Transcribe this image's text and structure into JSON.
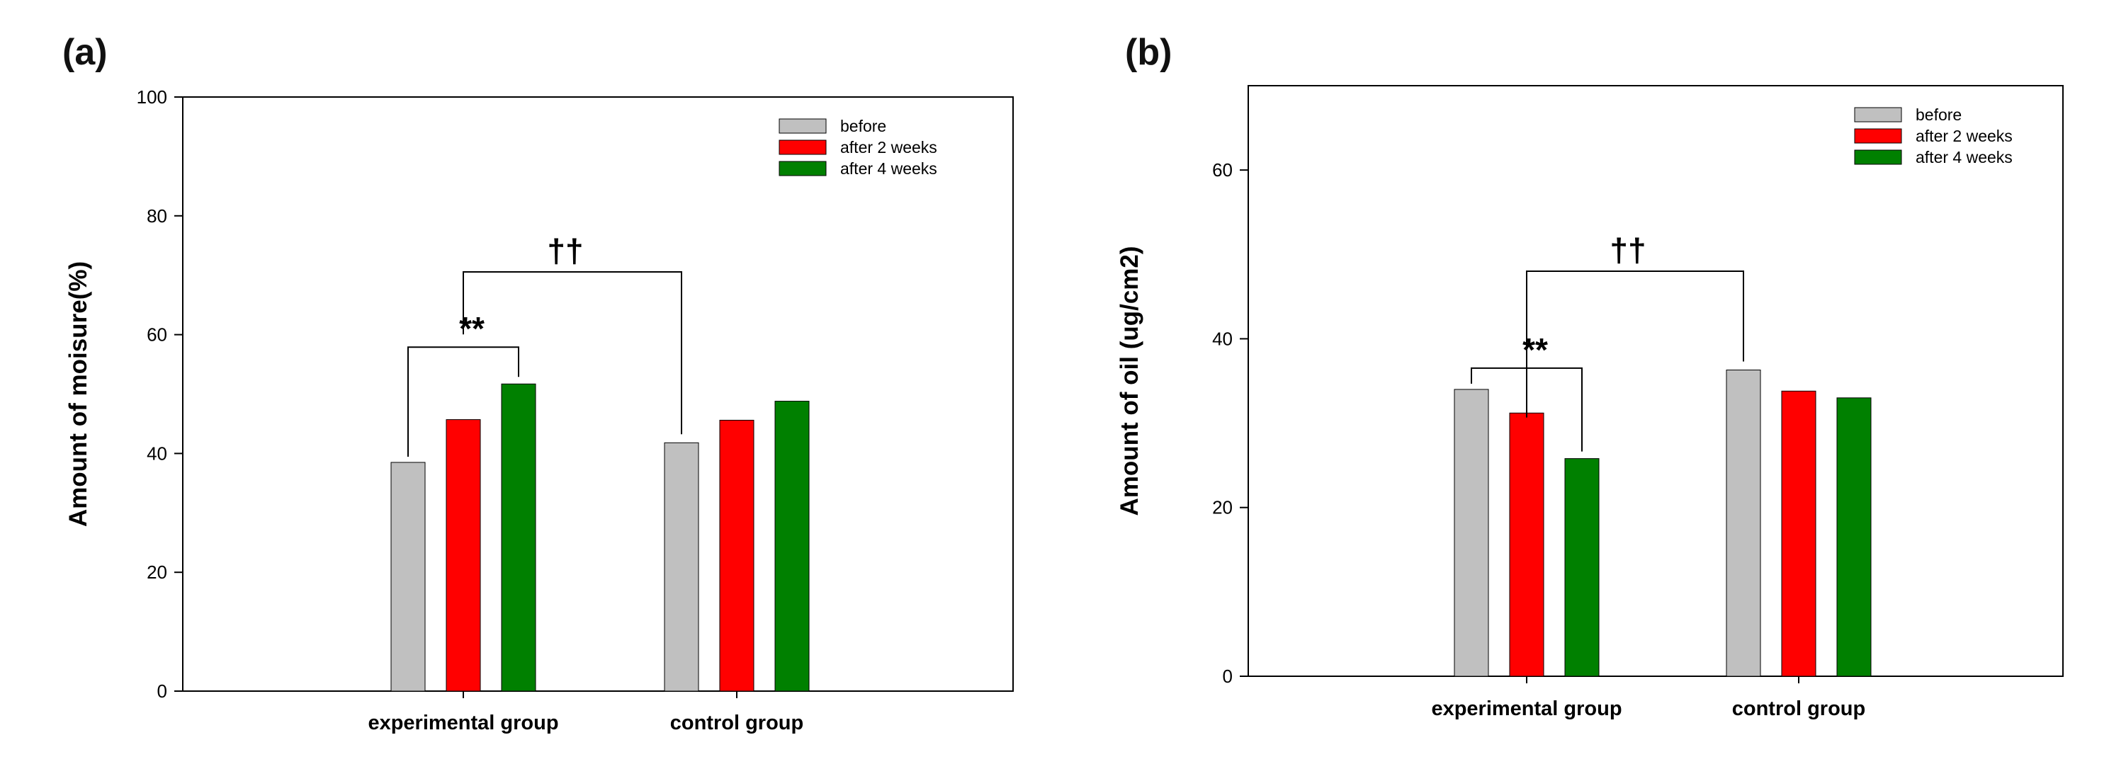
{
  "chart_data": [
    {
      "panel_label": "(a)",
      "type": "bar",
      "title": "",
      "xlabel": "",
      "ylabel": "Amount of moisure(%)",
      "ylim": [
        0,
        100
      ],
      "yticks": [
        0,
        20,
        40,
        60,
        80,
        100
      ],
      "yticks_text": [
        "0",
        "20",
        "40",
        "60",
        "80",
        "100"
      ],
      "categories": [
        "experimental group",
        "control group"
      ],
      "series": [
        {
          "name": "before",
          "color": "#c0c0c0",
          "values": [
            38.5,
            41.8
          ]
        },
        {
          "name": "after 2 weeks",
          "color": "#ff0000",
          "values": [
            45.7,
            45.6
          ]
        },
        {
          "name": "after 4 weeks",
          "color": "#008000",
          "values": [
            51.7,
            48.8
          ]
        }
      ],
      "legend_position": "top-right",
      "annotations": [
        {
          "text": "**",
          "type": "bracket",
          "from_series": 0,
          "to_series": 2,
          "category": 0
        },
        {
          "text": "††",
          "type": "bracket-between-groups",
          "from_category": 0,
          "to_category": 1
        }
      ]
    },
    {
      "panel_label": "(b)",
      "type": "bar",
      "title": "",
      "xlabel": "",
      "ylabel": "Amount of oil (ug/cm2)",
      "ylim": [
        0,
        70
      ],
      "yticks": [
        0,
        20,
        40,
        60
      ],
      "yticks_text": [
        "0",
        "20",
        "40",
        "60"
      ],
      "categories": [
        "experimental group",
        "control group"
      ],
      "series": [
        {
          "name": "before",
          "color": "#c0c0c0",
          "values": [
            34.0,
            36.3
          ]
        },
        {
          "name": "after 2 weeks",
          "color": "#ff0000",
          "values": [
            31.2,
            33.8
          ]
        },
        {
          "name": "after 4 weeks",
          "color": "#008000",
          "values": [
            25.8,
            33.0
          ]
        }
      ],
      "legend_position": "top-right",
      "annotations": [
        {
          "text": "**",
          "type": "bracket",
          "from_series": 0,
          "to_series": 2,
          "category": 0
        },
        {
          "text": "††",
          "type": "bracket-between-groups",
          "from_category": 0,
          "to_category": 1
        }
      ]
    }
  ]
}
